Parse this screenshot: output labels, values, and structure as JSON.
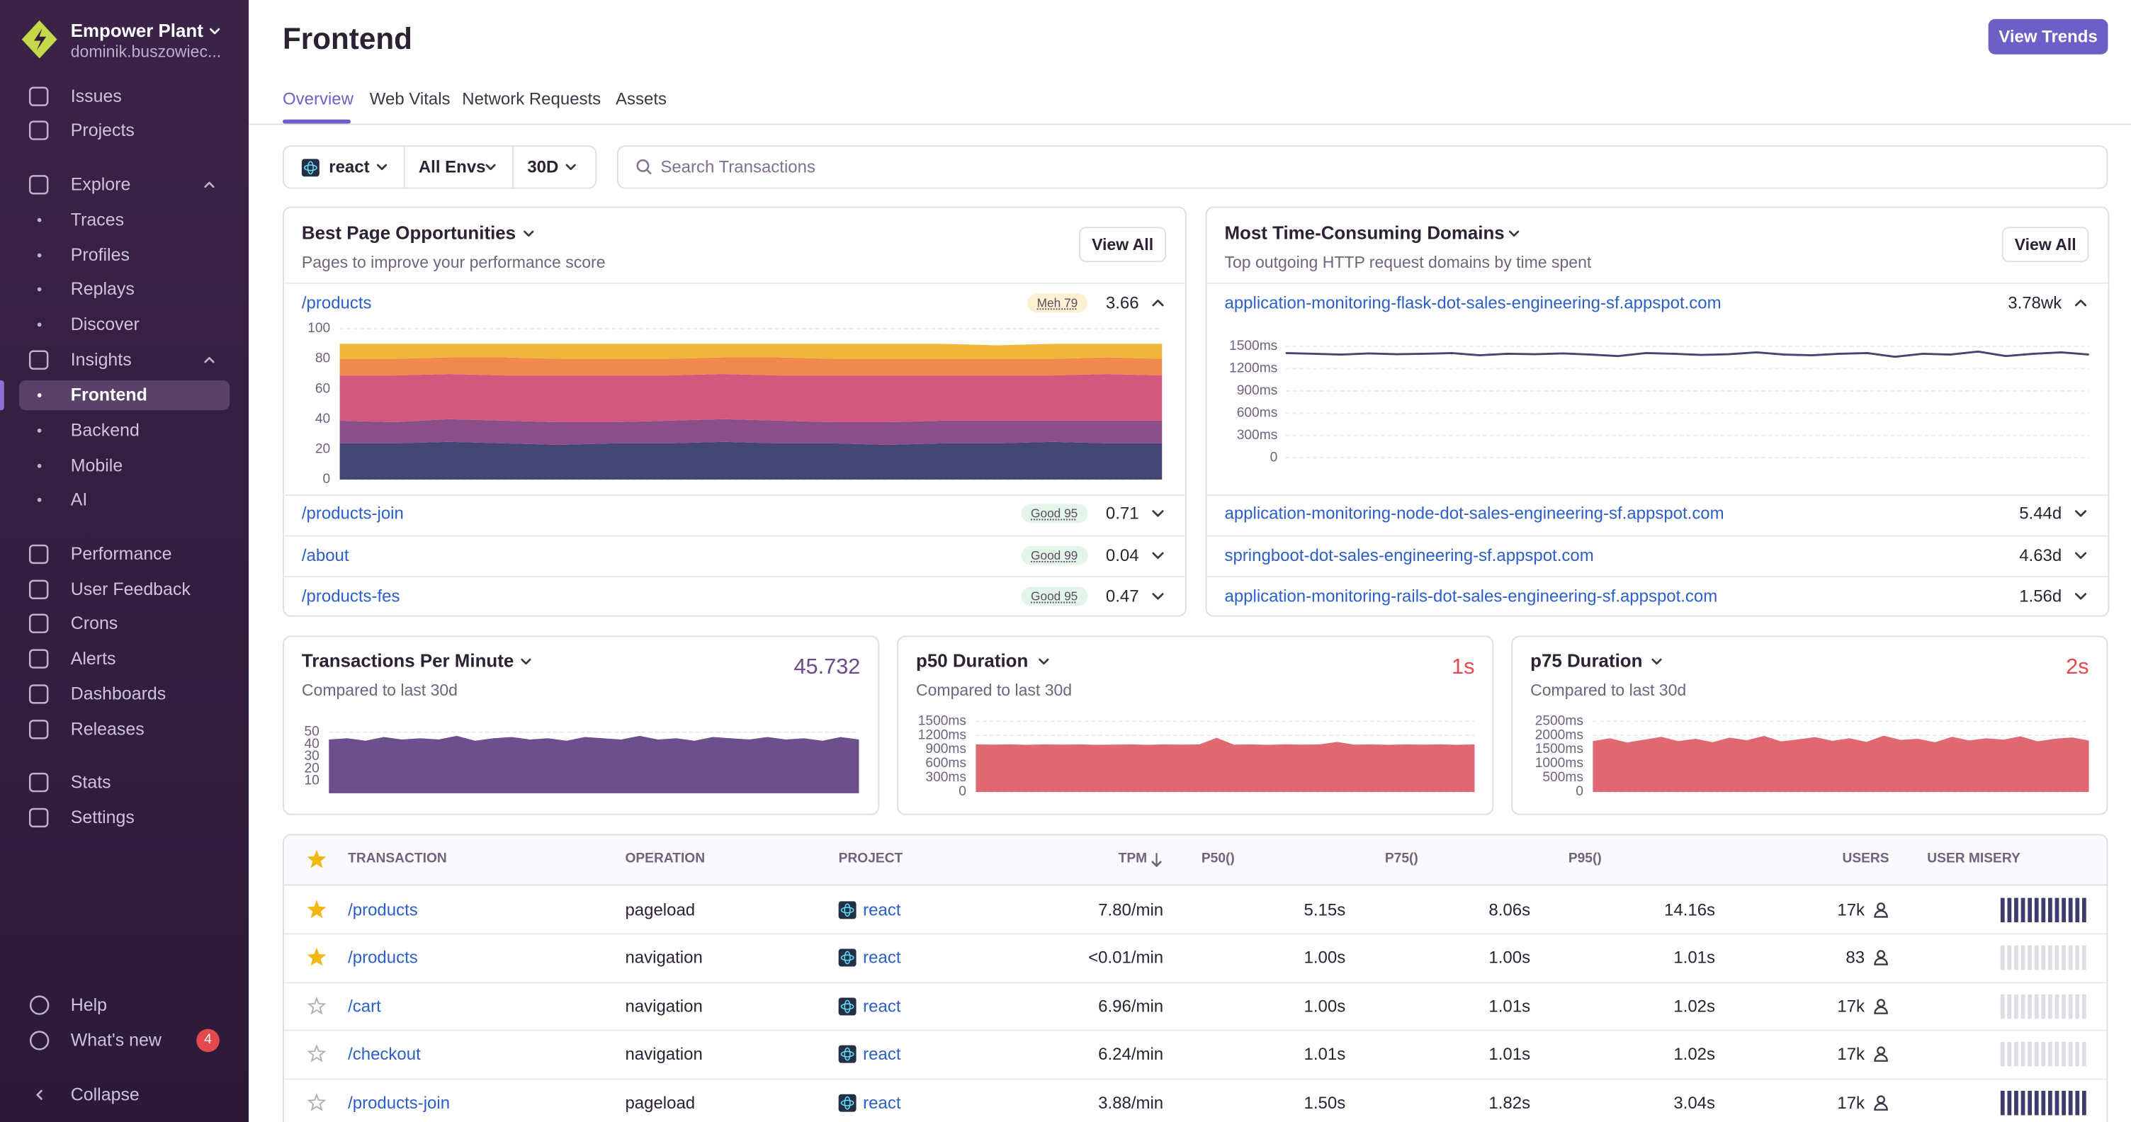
{
  "sidebar": {
    "org": "Empower Plant",
    "user": "dominik.buszowiec...",
    "nav": [
      {
        "label": "Issues"
      },
      {
        "label": "Projects"
      },
      {
        "label": "Explore",
        "children": [
          "Traces",
          "Profiles",
          "Replays",
          "Discover"
        ]
      },
      {
        "label": "Insights",
        "children": [
          "Frontend",
          "Backend",
          "Mobile",
          "AI"
        ]
      },
      {
        "label": "Performance"
      },
      {
        "label": "User Feedback"
      },
      {
        "label": "Crons"
      },
      {
        "label": "Alerts"
      },
      {
        "label": "Dashboards"
      },
      {
        "label": "Releases"
      },
      {
        "label": "Stats"
      },
      {
        "label": "Settings"
      }
    ],
    "footer": [
      {
        "label": "Help"
      },
      {
        "label": "What's new",
        "badge": 4
      },
      {
        "label": "Collapse"
      }
    ]
  },
  "header": {
    "title": "Frontend",
    "button": "View Trends",
    "tabs": [
      "Overview",
      "Web Vitals",
      "Network Requests",
      "Assets"
    ],
    "active_tab": 0
  },
  "filters": {
    "project": "react",
    "environment": "All Envs",
    "period": "30D",
    "search_placeholder": "Search Transactions"
  },
  "panels": [
    {
      "title": "Best Page Opportunities",
      "subtitle": "Pages to improve your performance score",
      "button": "View All",
      "rows": [
        {
          "name": "/products",
          "badge": "Meh 79",
          "badge_color": "#fcefd2",
          "value": "3.66",
          "expanded": true
        },
        {
          "name": "/products-join",
          "badge": "Good 95",
          "badge_color": "#e3f4e9",
          "value": "0.71",
          "expanded": false
        },
        {
          "name": "/about",
          "badge": "Good 99",
          "badge_color": "#e3f4e9",
          "value": "0.04",
          "expanded": false
        },
        {
          "name": "/products-fes",
          "badge": "Good 95",
          "badge_color": "#e3f4e9",
          "value": "0.47",
          "expanded": false
        }
      ]
    },
    {
      "title": "Most Time-Consuming Domains",
      "subtitle": "Top outgoing HTTP request domains by time spent",
      "button": "View All",
      "rows": [
        {
          "name": "application-monitoring-flask-dot-sales-engineering-sf.appspot.com",
          "value": "3.78wk",
          "expanded": true
        },
        {
          "name": "application-monitoring-node-dot-sales-engineering-sf.appspot.com",
          "value": "5.44d",
          "expanded": false
        },
        {
          "name": "springboot-dot-sales-engineering-sf.appspot.com",
          "value": "4.63d",
          "expanded": false
        },
        {
          "name": "application-monitoring-rails-dot-sales-engineering-sf.appspot.com",
          "value": "1.56d",
          "expanded": false
        }
      ]
    }
  ],
  "cards": [
    {
      "title": "Transactions Per Minute",
      "subtitle": "Compared to last 30d",
      "value": "45.732",
      "color": "#6c4a8c"
    },
    {
      "title": "p50 Duration",
      "subtitle": "Compared to last 30d",
      "value": "1s",
      "color": "#e5484d"
    },
    {
      "title": "p75 Duration",
      "subtitle": "Compared to last 30d",
      "value": "2s",
      "color": "#e5484d"
    }
  ],
  "chart_data": [
    {
      "type": "area",
      "stacked": true,
      "ylim": [
        0,
        100
      ],
      "yticks": [
        0,
        20,
        40,
        60,
        80,
        100
      ],
      "series": [
        {
          "color": "#444674",
          "values": [
            24,
            24,
            25,
            24,
            23,
            24,
            24,
            25,
            24,
            24,
            23,
            24,
            24,
            25,
            24,
            24
          ]
        },
        {
          "color": "#8a4f88",
          "values": [
            15,
            14,
            15,
            15,
            15,
            14,
            15,
            15,
            15,
            14,
            15,
            15,
            15,
            14,
            15,
            15
          ]
        },
        {
          "color": "#d1587e",
          "values": [
            30,
            31,
            30,
            30,
            31,
            31,
            30,
            30,
            30,
            31,
            31,
            30,
            30,
            30,
            31,
            30
          ]
        },
        {
          "color": "#f08a4c",
          "values": [
            11,
            11,
            11,
            12,
            11,
            11,
            11,
            11,
            12,
            11,
            11,
            11,
            11,
            11,
            11,
            11
          ]
        },
        {
          "color": "#f2b83c",
          "values": [
            10,
            10,
            9,
            9,
            10,
            10,
            10,
            9,
            9,
            10,
            10,
            10,
            9,
            10,
            9,
            10
          ]
        }
      ]
    },
    {
      "type": "line",
      "ylim": [
        0,
        1500
      ],
      "yticks": [
        0,
        {
          "value": 300,
          "label": "300ms"
        },
        {
          "value": 600,
          "label": "600ms"
        },
        {
          "value": 900,
          "label": "900ms"
        },
        {
          "value": 1200,
          "label": "1200ms"
        },
        {
          "value": 1500,
          "label": "1500ms"
        }
      ],
      "series": [
        {
          "color": "#444674",
          "values": [
            1410,
            1400,
            1390,
            1405,
            1395,
            1400,
            1410,
            1380,
            1400,
            1395,
            1405,
            1390,
            1370,
            1410,
            1400,
            1385,
            1395,
            1420,
            1390,
            1380,
            1400,
            1410,
            1360,
            1400,
            1390,
            1430,
            1370,
            1400,
            1420,
            1390
          ]
        }
      ]
    },
    {
      "type": "area",
      "ylim": [
        0,
        50
      ],
      "yticks": [
        10,
        20,
        30,
        40,
        50
      ],
      "series": [
        {
          "color": "#6e4f8d",
          "values": [
            44,
            45,
            43,
            46,
            44,
            45,
            44,
            47,
            43,
            45,
            46,
            44,
            45,
            43,
            46,
            45,
            44,
            47,
            44,
            45,
            43,
            46,
            45,
            44,
            46,
            44,
            45,
            43,
            46,
            44
          ]
        }
      ]
    },
    {
      "type": "area",
      "ylim": [
        0,
        1500
      ],
      "yticks": [
        0,
        {
          "value": 300,
          "label": "300ms"
        },
        {
          "value": 600,
          "label": "600ms"
        },
        {
          "value": 900,
          "label": "900ms"
        },
        {
          "value": 1200,
          "label": "1200ms"
        },
        {
          "value": 1500,
          "label": "1500ms"
        }
      ],
      "series": [
        {
          "color": "#e06872",
          "values": [
            1010,
            1005,
            1010,
            1000,
            1010,
            1005,
            1010,
            1000,
            1005,
            1010,
            1000,
            1010,
            1005,
            1010,
            1150,
            1005,
            1010,
            1000,
            1010,
            1005,
            1010,
            1060,
            1005,
            1010,
            1000,
            1010,
            1005,
            1010,
            1000,
            1010
          ]
        }
      ]
    },
    {
      "type": "area",
      "ylim": [
        0,
        2500
      ],
      "yticks": [
        0,
        {
          "value": 500,
          "label": "500ms"
        },
        {
          "value": 1000,
          "label": "1000ms"
        },
        {
          "value": 1500,
          "label": "1500ms"
        },
        {
          "value": 2000,
          "label": "2000ms"
        },
        {
          "value": 2500,
          "label": "2500ms"
        }
      ],
      "series": [
        {
          "color": "#e06872",
          "values": [
            1800,
            1900,
            1750,
            1850,
            1950,
            1800,
            1880,
            1760,
            1920,
            1830,
            1980,
            1790,
            1860,
            1940,
            1810,
            1900,
            1770,
            1990,
            1840,
            1880,
            1760,
            1950,
            1820,
            1900,
            1850,
            1970,
            1790,
            1880,
            1930,
            1820
          ]
        }
      ]
    }
  ],
  "table": {
    "columns": [
      "TRANSACTION",
      "OPERATION",
      "PROJECT",
      "TPM",
      "P50()",
      "P75()",
      "P95()",
      "USERS",
      "USER MISERY"
    ],
    "sort_column": 3,
    "rows": [
      {
        "starred": true,
        "transaction": "/products",
        "operation": "pageload",
        "project": "react",
        "tpm": "7.80/min",
        "p50": "5.15s",
        "p75": "8.06s",
        "p95": "14.16s",
        "users": "17k",
        "user_misery": 13
      },
      {
        "starred": true,
        "transaction": "/products",
        "operation": "navigation",
        "project": "react",
        "tpm": "<0.01/min",
        "p50": "1.00s",
        "p75": "1.00s",
        "p95": "1.01s",
        "users": "83",
        "user_misery": 0
      },
      {
        "starred": false,
        "transaction": "/cart",
        "operation": "navigation",
        "project": "react",
        "tpm": "6.96/min",
        "p50": "1.00s",
        "p75": "1.01s",
        "p95": "1.02s",
        "users": "17k",
        "user_misery": 0
      },
      {
        "starred": false,
        "transaction": "/checkout",
        "operation": "navigation",
        "project": "react",
        "tpm": "6.24/min",
        "p50": "1.01s",
        "p75": "1.01s",
        "p95": "1.02s",
        "users": "17k",
        "user_misery": 0
      },
      {
        "starred": false,
        "transaction": "/products-join",
        "operation": "pageload",
        "project": "react",
        "tpm": "3.88/min",
        "p50": "1.50s",
        "p75": "1.82s",
        "p95": "3.04s",
        "users": "17k",
        "user_misery": 13
      }
    ]
  }
}
